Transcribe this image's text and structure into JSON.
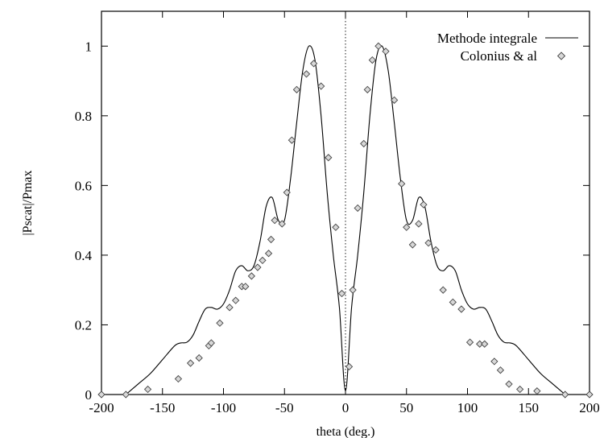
{
  "chart_data": {
    "type": "line",
    "title": "",
    "xlabel": "theta (deg.)",
    "ylabel": "|Pscat|/Pmax",
    "xlim": [
      -200,
      200
    ],
    "ylim": [
      0,
      1.1
    ],
    "xticks": [
      "-200",
      "-150",
      "-100",
      "-50",
      "0",
      "50",
      "100",
      "150",
      "200"
    ],
    "yticks": [
      "0",
      "0.2",
      "0.4",
      "0.6",
      "0.8",
      "1"
    ],
    "grid": false,
    "legend_position": "top-right",
    "zero_line": {
      "x": 0,
      "style": "dotted"
    },
    "series": [
      {
        "name": "Methode integrale",
        "style": "line",
        "color": "#000000",
        "x": [
          -180,
          -170,
          -160,
          -150,
          -140,
          -135,
          -130,
          -125,
          -120,
          -115,
          -110,
          -105,
          -100,
          -95,
          -90,
          -85,
          -80,
          -75,
          -70,
          -65,
          -60,
          -55,
          -50,
          -45,
          -40,
          -35,
          -30,
          -25,
          -20,
          -15,
          -10,
          -5,
          0,
          5,
          10,
          15,
          20,
          25,
          30,
          35,
          40,
          45,
          50,
          55,
          60,
          65,
          70,
          75,
          80,
          85,
          90,
          95,
          100,
          105,
          110,
          115,
          120,
          125,
          130,
          135,
          140,
          150,
          160,
          170,
          180
        ],
        "y": [
          0.0,
          0.03,
          0.06,
          0.1,
          0.14,
          0.148,
          0.15,
          0.17,
          0.21,
          0.245,
          0.25,
          0.245,
          0.26,
          0.3,
          0.355,
          0.37,
          0.355,
          0.37,
          0.44,
          0.54,
          0.565,
          0.5,
          0.5,
          0.62,
          0.78,
          0.93,
          1.0,
          0.96,
          0.8,
          0.58,
          0.4,
          0.25,
          0.01,
          0.25,
          0.4,
          0.58,
          0.8,
          0.96,
          1.0,
          0.93,
          0.78,
          0.62,
          0.5,
          0.5,
          0.565,
          0.54,
          0.44,
          0.37,
          0.355,
          0.37,
          0.355,
          0.3,
          0.26,
          0.245,
          0.25,
          0.245,
          0.21,
          0.17,
          0.15,
          0.148,
          0.14,
          0.1,
          0.06,
          0.03,
          0.0
        ]
      },
      {
        "name": "Colonius & al",
        "style": "points",
        "marker": "diamond",
        "color": "#555555",
        "x": [
          -200,
          -180,
          -162,
          -137,
          -127,
          -120,
          -112,
          -110,
          -103,
          -95,
          -90,
          -85,
          -82,
          -77,
          -72,
          -68,
          -63,
          -61,
          -58,
          -52,
          -48,
          -44,
          -40,
          -32,
          -26,
          -20,
          -14,
          -8,
          -3,
          3,
          6,
          10,
          15,
          18,
          22,
          27,
          33,
          40,
          46,
          50,
          55,
          60,
          64,
          68,
          74,
          80,
          88,
          95,
          102,
          110,
          114,
          122,
          127,
          134,
          143,
          157,
          180,
          200
        ],
        "y": [
          0.0,
          0.0,
          0.015,
          0.045,
          0.09,
          0.105,
          0.14,
          0.148,
          0.205,
          0.25,
          0.27,
          0.31,
          0.31,
          0.34,
          0.365,
          0.385,
          0.405,
          0.445,
          0.5,
          0.49,
          0.58,
          0.73,
          0.875,
          0.92,
          0.95,
          0.885,
          0.68,
          0.48,
          0.29,
          0.08,
          0.3,
          0.535,
          0.72,
          0.875,
          0.96,
          1.0,
          0.985,
          0.845,
          0.605,
          0.48,
          0.43,
          0.49,
          0.545,
          0.435,
          0.415,
          0.3,
          0.265,
          0.245,
          0.15,
          0.145,
          0.145,
          0.095,
          0.07,
          0.03,
          0.015,
          0.01,
          0.0,
          0.0
        ]
      }
    ]
  }
}
